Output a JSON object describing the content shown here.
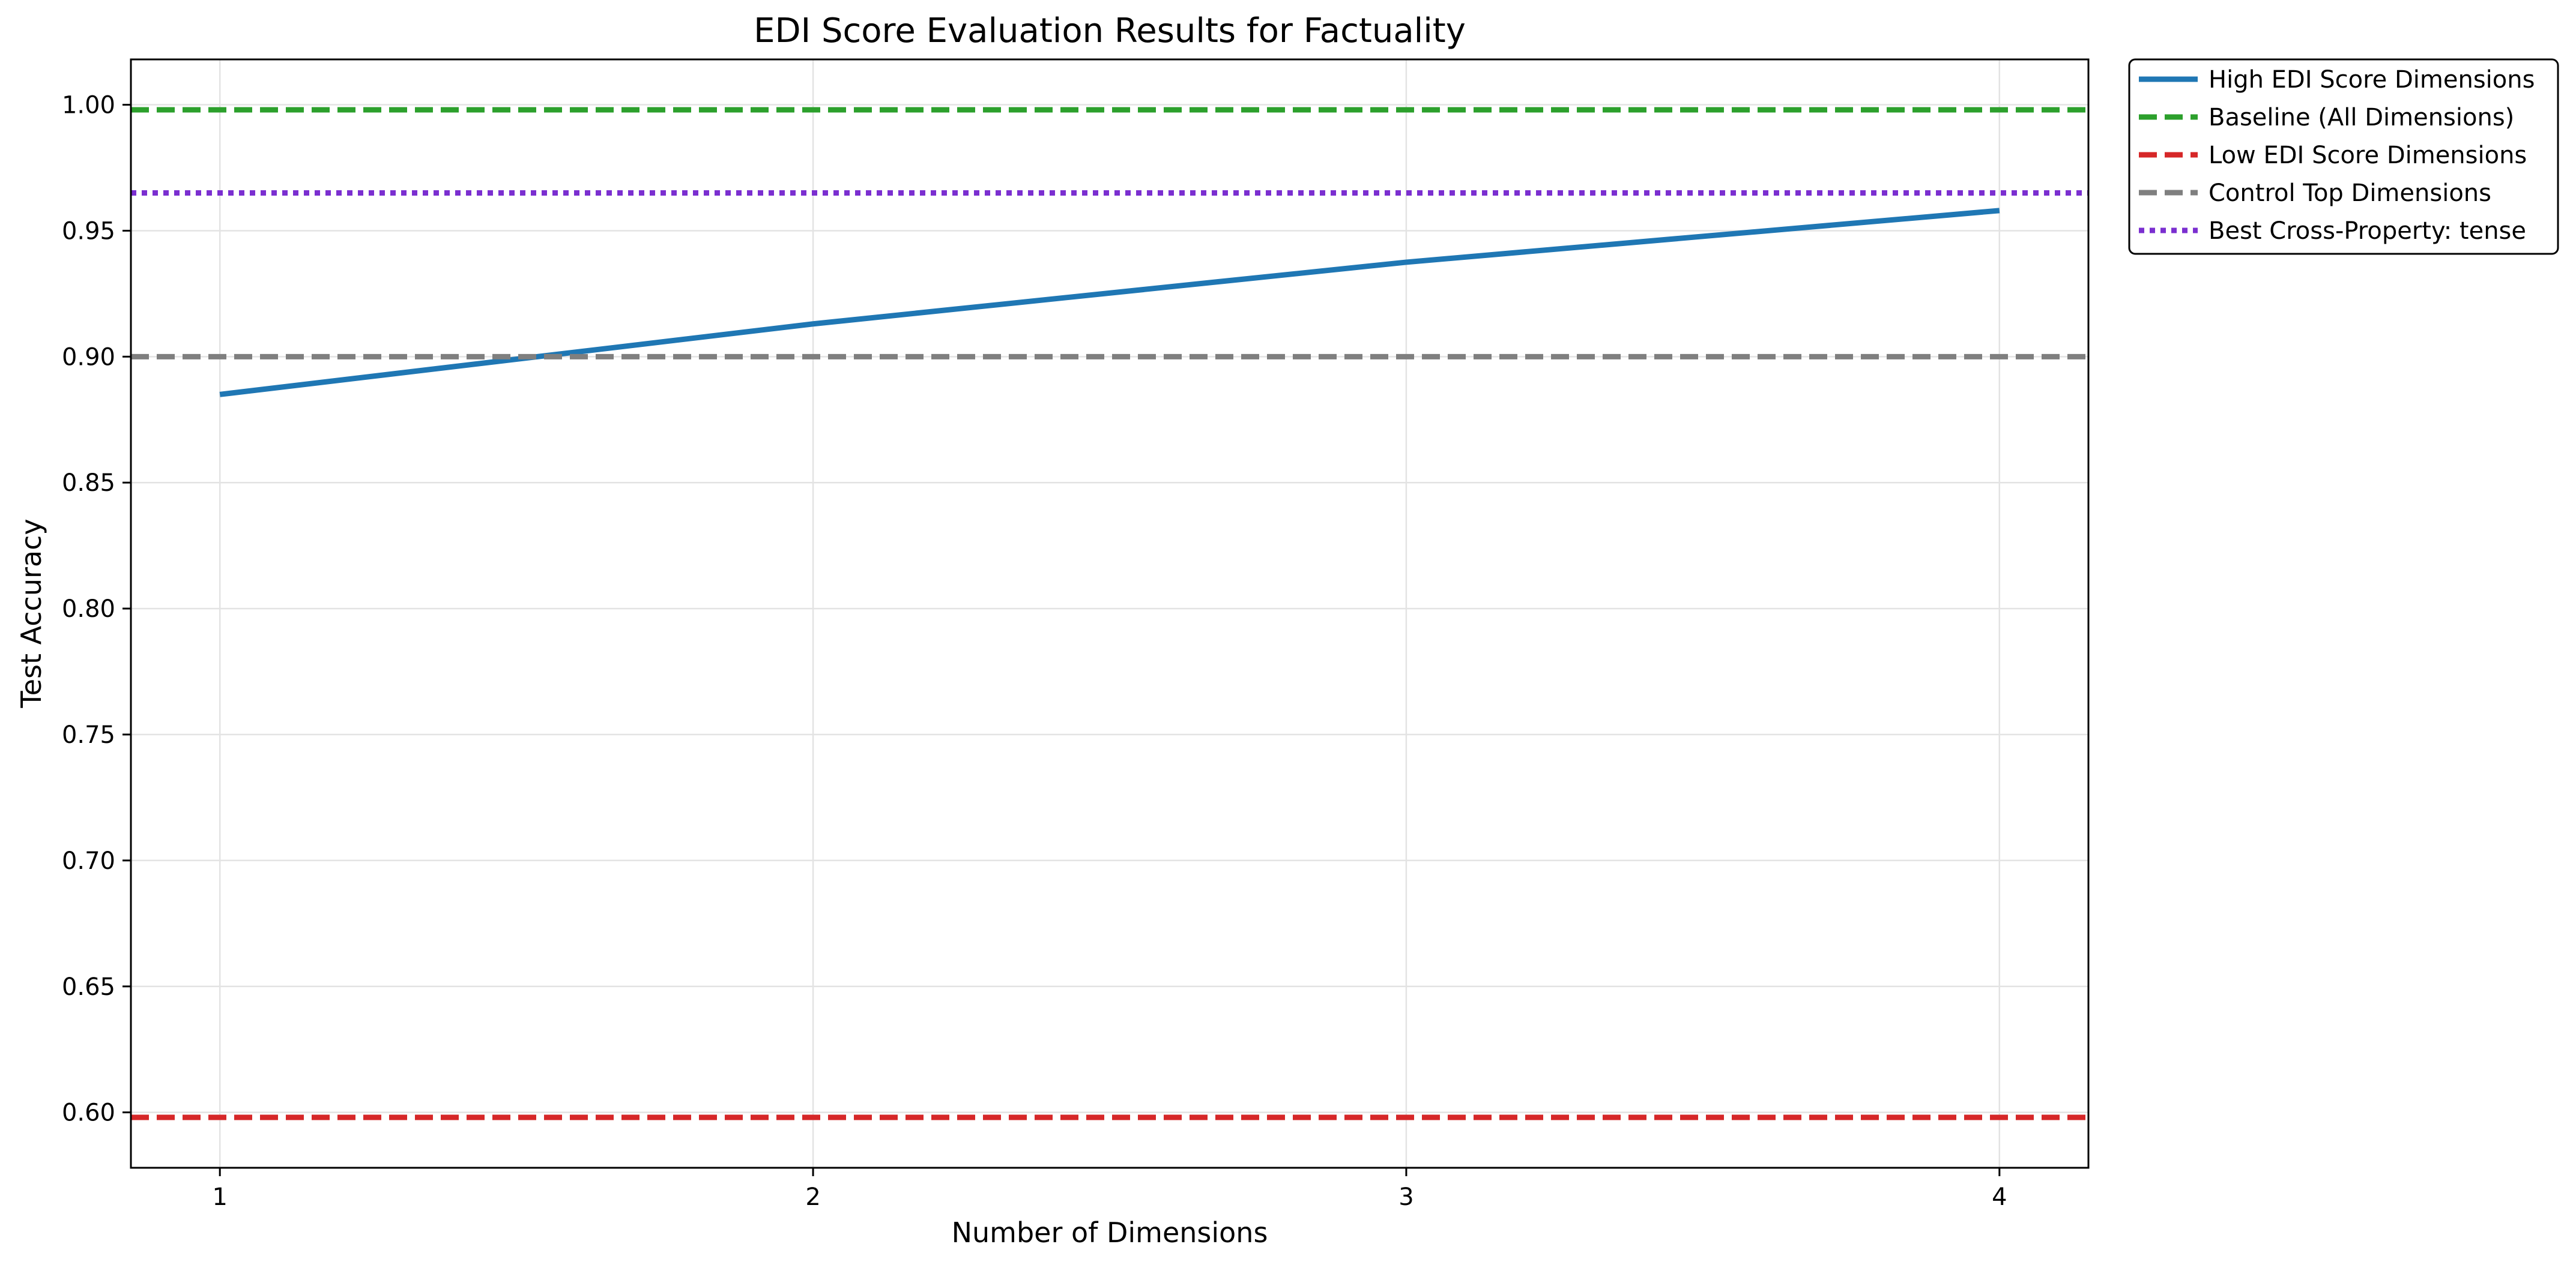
{
  "chart_data": {
    "type": "line",
    "title": "EDI Score Evaluation Results for Factuality",
    "xlabel": "Number of Dimensions",
    "ylabel": "Test Accuracy",
    "xlim": [
      0.85,
      4.15
    ],
    "ylim": [
      0.578,
      1.018
    ],
    "x_ticks": [
      1,
      2,
      3,
      4
    ],
    "y_ticks": [
      0.6,
      0.65,
      0.7,
      0.75,
      0.8,
      0.85,
      0.9,
      0.95,
      1.0
    ],
    "grid": true,
    "legend_position": "outside-upper-right",
    "series": [
      {
        "name": "High EDI Score Dimensions",
        "color": "#1f77b4",
        "style": "solid",
        "x": [
          1,
          2,
          3,
          4
        ],
        "y": [
          0.885,
          0.913,
          0.9375,
          0.958
        ]
      },
      {
        "name": "Baseline (All Dimensions)",
        "color": "#2ca02c",
        "style": "dashed",
        "y_const": 0.998
      },
      {
        "name": "Low EDI Score Dimensions",
        "color": "#d62728",
        "style": "dashed",
        "y_const": 0.598
      },
      {
        "name": "Control Top Dimensions",
        "color": "#7f7f7f",
        "style": "dashed",
        "y_const": 0.9
      },
      {
        "name": "Best Cross-Property: tense",
        "color": "#7b2fd0",
        "style": "dotted",
        "y_const": 0.965
      }
    ]
  }
}
